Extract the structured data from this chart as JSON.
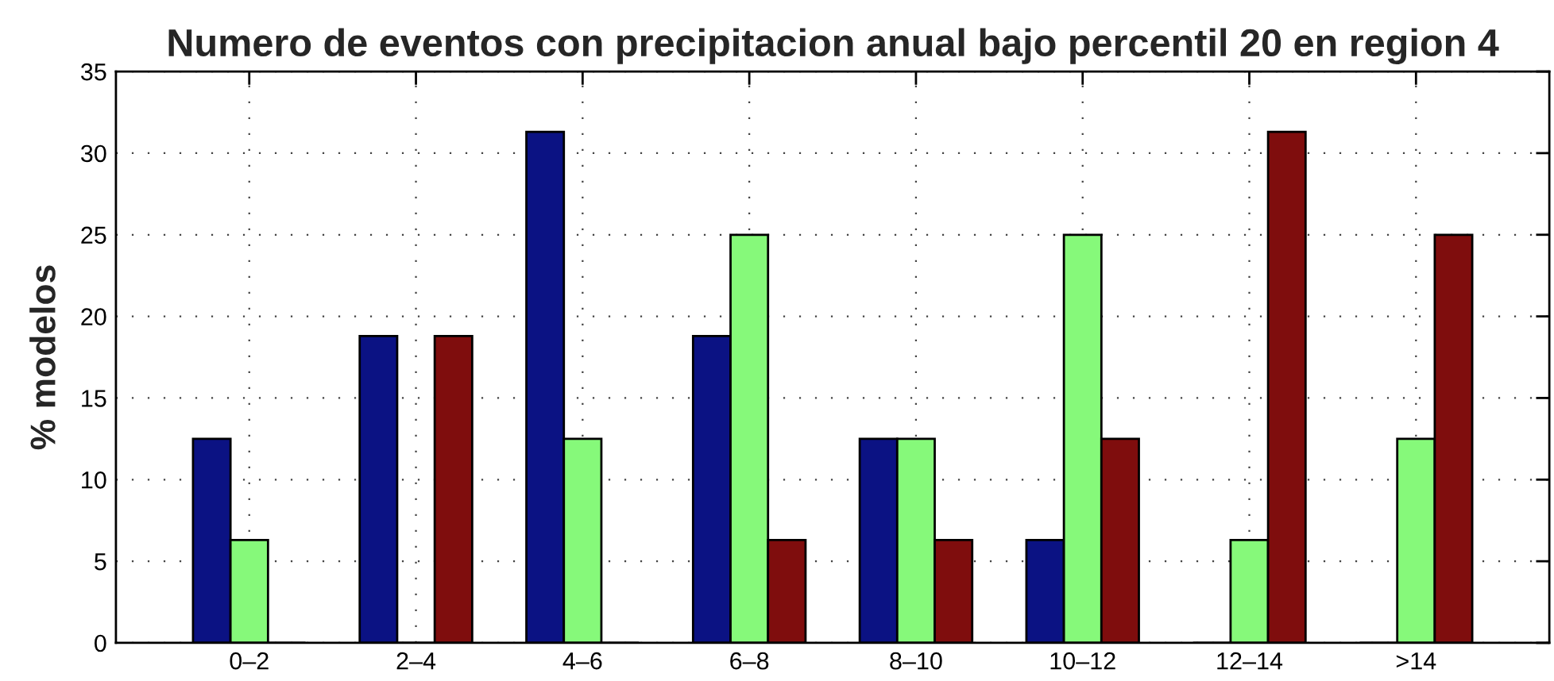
{
  "chart_data": {
    "type": "bar",
    "title": "Numero de eventos con precipitacion anual bajo percentil 20 en region 4",
    "ylabel": "% modelos",
    "categories": [
      "0–2",
      "2–4",
      "4–6",
      "6–8",
      "8–10",
      "10–12",
      "12–14",
      ">14"
    ],
    "series": [
      {
        "color": "#0b1283",
        "values": [
          12.5,
          18.8,
          31.3,
          18.8,
          12.5,
          6.3,
          0,
          0
        ]
      },
      {
        "color": "#86f97a",
        "values": [
          6.3,
          0,
          12.5,
          25,
          12.5,
          25,
          6.3,
          12.5
        ]
      },
      {
        "color": "#7f0d0d",
        "values": [
          0,
          18.8,
          0,
          6.3,
          6.3,
          12.5,
          31.3,
          25
        ]
      }
    ],
    "ylim": [
      0,
      35
    ],
    "yticks": [
      0,
      5,
      10,
      15,
      20,
      25,
      30,
      35
    ],
    "grid": true
  }
}
